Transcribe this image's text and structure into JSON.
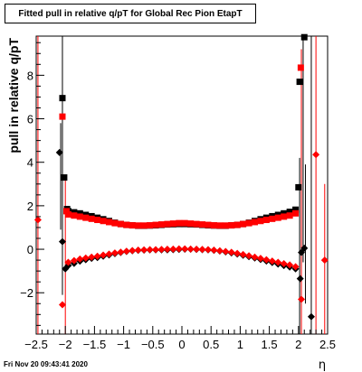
{
  "chart_data": {
    "type": "scatter",
    "title": "Fitted pull in relative q/pT for Global Rec Pion EtapT",
    "xlabel": "η",
    "ylabel": "pull in relative q/pT",
    "xlim": [
      -2.5,
      2.5
    ],
    "ylim": [
      -3.9,
      9.8
    ],
    "x_ticks": [
      -2.5,
      -2,
      -1.5,
      -1,
      -0.5,
      0,
      0.5,
      1,
      1.5,
      2,
      2.5
    ],
    "x_tick_labels": [
      "−2.5",
      "−2",
      "−1.5",
      "−1",
      "−0.5",
      "0",
      "0.5",
      "1",
      "1.5",
      "2",
      "2.5"
    ],
    "y_ticks": [
      -2,
      0,
      2,
      4,
      6,
      8
    ],
    "y_tick_labels": [
      "−2",
      "0",
      "2",
      "4",
      "6",
      "8"
    ],
    "grid": false,
    "series": [
      {
        "marker": "square",
        "color": "#000000",
        "points": [
          [
            -2.05,
            6.95
          ],
          [
            -2.02,
            3.3
          ],
          [
            -1.97,
            1.85
          ],
          [
            2.0,
            2.85
          ],
          [
            2.02,
            7.7
          ],
          [
            2.1,
            9.75
          ],
          [
            -1.95,
            1.75
          ],
          [
            -1.85,
            1.7
          ],
          [
            -1.75,
            1.65
          ],
          [
            -1.65,
            1.58
          ],
          [
            -1.55,
            1.52
          ],
          [
            -1.45,
            1.45
          ],
          [
            -1.35,
            1.38
          ],
          [
            -1.25,
            1.3
          ],
          [
            -1.15,
            1.22
          ],
          [
            -1.05,
            1.16
          ],
          [
            -0.95,
            1.12
          ],
          [
            -0.85,
            1.1
          ],
          [
            -0.75,
            1.08
          ],
          [
            -0.65,
            1.08
          ],
          [
            -0.55,
            1.09
          ],
          [
            -0.45,
            1.1
          ],
          [
            -0.35,
            1.12
          ],
          [
            -0.25,
            1.14
          ],
          [
            -0.15,
            1.15
          ],
          [
            -0.05,
            1.16
          ],
          [
            0.05,
            1.16
          ],
          [
            0.15,
            1.15
          ],
          [
            0.25,
            1.14
          ],
          [
            0.35,
            1.12
          ],
          [
            0.45,
            1.1
          ],
          [
            0.55,
            1.09
          ],
          [
            0.65,
            1.08
          ],
          [
            0.75,
            1.08
          ],
          [
            0.85,
            1.1
          ],
          [
            0.95,
            1.12
          ],
          [
            1.05,
            1.16
          ],
          [
            1.15,
            1.22
          ],
          [
            1.25,
            1.3
          ],
          [
            1.35,
            1.38
          ],
          [
            1.45,
            1.45
          ],
          [
            1.55,
            1.52
          ],
          [
            1.65,
            1.58
          ],
          [
            1.75,
            1.65
          ],
          [
            1.85,
            1.72
          ],
          [
            1.95,
            1.82
          ]
        ]
      },
      {
        "marker": "square",
        "color": "#ff0000",
        "points": [
          [
            -2.05,
            6.1
          ],
          [
            -1.98,
            1.75
          ],
          [
            2.04,
            8.35
          ],
          [
            -1.95,
            1.6
          ],
          [
            -1.85,
            1.55
          ],
          [
            -1.75,
            1.5
          ],
          [
            -1.65,
            1.45
          ],
          [
            -1.55,
            1.4
          ],
          [
            -1.45,
            1.35
          ],
          [
            -1.35,
            1.3
          ],
          [
            -1.25,
            1.25
          ],
          [
            -1.15,
            1.2
          ],
          [
            -1.05,
            1.16
          ],
          [
            -0.95,
            1.12
          ],
          [
            -0.85,
            1.1
          ],
          [
            -0.75,
            1.09
          ],
          [
            -0.65,
            1.09
          ],
          [
            -0.55,
            1.1
          ],
          [
            -0.45,
            1.12
          ],
          [
            -0.35,
            1.14
          ],
          [
            -0.25,
            1.16
          ],
          [
            -0.15,
            1.18
          ],
          [
            -0.05,
            1.2
          ],
          [
            0.05,
            1.2
          ],
          [
            0.15,
            1.18
          ],
          [
            0.25,
            1.16
          ],
          [
            0.35,
            1.14
          ],
          [
            0.45,
            1.12
          ],
          [
            0.55,
            1.1
          ],
          [
            0.65,
            1.09
          ],
          [
            0.75,
            1.09
          ],
          [
            0.85,
            1.1
          ],
          [
            0.95,
            1.12
          ],
          [
            1.05,
            1.16
          ],
          [
            1.15,
            1.2
          ],
          [
            1.25,
            1.25
          ],
          [
            1.35,
            1.3
          ],
          [
            1.45,
            1.35
          ],
          [
            1.55,
            1.4
          ],
          [
            1.65,
            1.45
          ],
          [
            1.75,
            1.5
          ],
          [
            1.85,
            1.55
          ],
          [
            1.95,
            1.65
          ]
        ]
      },
      {
        "marker": "diamond",
        "color": "#000000",
        "points": [
          [
            -2.1,
            4.45
          ],
          [
            -2.05,
            0.35
          ],
          [
            -2.0,
            -0.9
          ],
          [
            2.03,
            -1.35
          ],
          [
            2.05,
            -0.15
          ],
          [
            2.1,
            0.05
          ],
          [
            2.22,
            -3.1
          ],
          [
            -1.95,
            -0.75
          ],
          [
            -1.85,
            -0.65
          ],
          [
            -1.75,
            -0.55
          ],
          [
            -1.65,
            -0.48
          ],
          [
            -1.55,
            -0.42
          ],
          [
            -1.45,
            -0.38
          ],
          [
            -1.35,
            -0.32
          ],
          [
            -1.25,
            -0.26
          ],
          [
            -1.15,
            -0.2
          ],
          [
            -1.05,
            -0.15
          ],
          [
            -0.95,
            -0.1
          ],
          [
            -0.85,
            -0.07
          ],
          [
            -0.75,
            -0.05
          ],
          [
            -0.65,
            -0.04
          ],
          [
            -0.55,
            -0.03
          ],
          [
            -0.45,
            -0.03
          ],
          [
            -0.35,
            -0.03
          ],
          [
            -0.25,
            -0.03
          ],
          [
            -0.15,
            -0.02
          ],
          [
            -0.05,
            -0.01
          ],
          [
            0.05,
            0.0
          ],
          [
            0.15,
            0.0
          ],
          [
            0.25,
            -0.01
          ],
          [
            0.35,
            -0.02
          ],
          [
            0.45,
            -0.03
          ],
          [
            0.55,
            -0.05
          ],
          [
            0.65,
            -0.08
          ],
          [
            0.75,
            -0.12
          ],
          [
            0.85,
            -0.17
          ],
          [
            0.95,
            -0.22
          ],
          [
            1.05,
            -0.28
          ],
          [
            1.15,
            -0.34
          ],
          [
            1.25,
            -0.4
          ],
          [
            1.35,
            -0.47
          ],
          [
            1.45,
            -0.54
          ],
          [
            1.55,
            -0.61
          ],
          [
            1.65,
            -0.68
          ],
          [
            1.75,
            -0.75
          ],
          [
            1.85,
            -0.82
          ],
          [
            1.95,
            -0.9
          ]
        ]
      },
      {
        "marker": "diamond",
        "color": "#ff0000",
        "points": [
          [
            -2.47,
            1.35
          ],
          [
            -2.05,
            -2.55
          ],
          [
            2.05,
            -2.3
          ],
          [
            2.3,
            4.35
          ],
          [
            2.45,
            -0.5
          ],
          [
            -1.95,
            -0.6
          ],
          [
            -1.85,
            -0.52
          ],
          [
            -1.75,
            -0.45
          ],
          [
            -1.65,
            -0.4
          ],
          [
            -1.55,
            -0.36
          ],
          [
            -1.45,
            -0.32
          ],
          [
            -1.35,
            -0.27
          ],
          [
            -1.25,
            -0.22
          ],
          [
            -1.15,
            -0.17
          ],
          [
            -1.05,
            -0.13
          ],
          [
            -0.95,
            -0.09
          ],
          [
            -0.85,
            -0.06
          ],
          [
            -0.75,
            -0.04
          ],
          [
            -0.65,
            -0.03
          ],
          [
            -0.55,
            -0.02
          ],
          [
            -0.45,
            -0.02
          ],
          [
            -0.35,
            -0.01
          ],
          [
            -0.25,
            0.0
          ],
          [
            -0.15,
            0.01
          ],
          [
            -0.05,
            0.02
          ],
          [
            0.05,
            0.02
          ],
          [
            0.15,
            0.01
          ],
          [
            0.25,
            0.0
          ],
          [
            0.35,
            -0.01
          ],
          [
            0.45,
            -0.02
          ],
          [
            0.55,
            -0.04
          ],
          [
            0.65,
            -0.07
          ],
          [
            0.75,
            -0.1
          ],
          [
            0.85,
            -0.14
          ],
          [
            0.95,
            -0.19
          ],
          [
            1.05,
            -0.24
          ],
          [
            1.15,
            -0.3
          ],
          [
            1.25,
            -0.36
          ],
          [
            1.35,
            -0.42
          ],
          [
            1.45,
            -0.48
          ],
          [
            1.55,
            -0.54
          ],
          [
            1.65,
            -0.6
          ],
          [
            1.75,
            -0.66
          ],
          [
            1.85,
            -0.72
          ],
          [
            1.95,
            -0.8
          ]
        ]
      }
    ],
    "error_bars": [
      {
        "x": -2.05,
        "y_low": -2.1,
        "y_high": 9.8,
        "color": "#000000"
      },
      {
        "x": -2.08,
        "y_low": 0.9,
        "y_high": 5.8,
        "color": "#000000"
      },
      {
        "x": -2.0,
        "y_low": -3.9,
        "y_high": 3.3,
        "color": "#ff0000"
      },
      {
        "x": -2.47,
        "y_low": -3.9,
        "y_high": 9.8,
        "color": "#ff0000"
      },
      {
        "x": 2.02,
        "y_low": -3.9,
        "y_high": 4.2,
        "color": "#000000"
      },
      {
        "x": 2.08,
        "y_low": -0.6,
        "y_high": 9.8,
        "color": "#000000"
      },
      {
        "x": 2.12,
        "y_low": -2.5,
        "y_high": 3.9,
        "color": "#000000"
      },
      {
        "x": 2.22,
        "y_low": -3.9,
        "y_high": 9.8,
        "color": "#000000"
      },
      {
        "x": 2.05,
        "y_low": -3.9,
        "y_high": 9.2,
        "color": "#ff0000"
      },
      {
        "x": 2.3,
        "y_low": -3.9,
        "y_high": 9.8,
        "color": "#ff0000"
      },
      {
        "x": 2.45,
        "y_low": -3.9,
        "y_high": 3.0,
        "color": "#ff0000"
      }
    ]
  },
  "footer": {
    "timestamp": "Fri Nov 20 09:43:41 2020"
  }
}
